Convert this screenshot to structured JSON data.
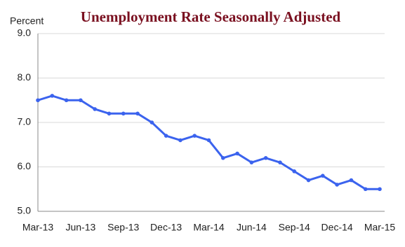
{
  "chart_data": {
    "type": "line",
    "title": "Unemployment Rate Seasonally Adjusted",
    "y_label": "Percent",
    "categories": [
      "Mar-13",
      null,
      null,
      "Jun-13",
      null,
      null,
      "Sep-13",
      null,
      null,
      "Dec-13",
      null,
      null,
      "Mar-14",
      null,
      null,
      "Jun-14",
      null,
      null,
      "Sep-14",
      null,
      null,
      "Dec-14",
      null,
      null,
      "Mar-15"
    ],
    "series": [
      {
        "color": "#3b63ee",
        "values": [
          7.5,
          7.6,
          7.5,
          7.5,
          7.3,
          7.2,
          7.2,
          7.2,
          7.0,
          6.7,
          6.6,
          6.7,
          6.6,
          6.2,
          6.3,
          6.1,
          6.2,
          6.1,
          5.9,
          5.7,
          5.8,
          5.6,
          5.7,
          5.5,
          5.5
        ]
      }
    ],
    "ylim": [
      5.0,
      9.0
    ],
    "yticks": [
      {
        "value": 5.0,
        "label": "5.0"
      },
      {
        "value": 6.0,
        "label": "6.0"
      },
      {
        "value": 7.0,
        "label": "7.0"
      },
      {
        "value": 8.0,
        "label": "8.0"
      },
      {
        "value": 9.0,
        "label": "9.0"
      }
    ],
    "grid": true
  }
}
